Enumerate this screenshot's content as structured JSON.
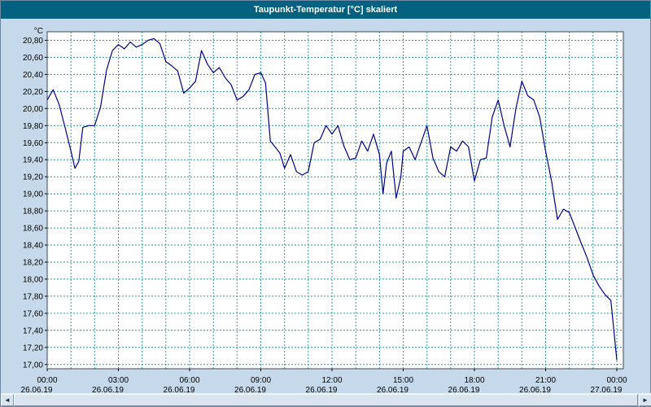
{
  "window": {
    "title": "Taupunkt-Temperatur [°C] skaliert"
  },
  "colors": {
    "titlebar_bg": "#04617f",
    "titlebar_text": "#ffffff",
    "window_bg": "#c6d9ea",
    "plot_bg": "#ffffff",
    "grid": "#2e9c96",
    "line": "#00008c",
    "plot_border": "#3c4a58",
    "axis_text": "#000000"
  },
  "scrollbar": {
    "left_arrow": "◄",
    "right_arrow": "►"
  },
  "chart_data": {
    "type": "line",
    "title": "Taupunkt-Temperatur [°C] skaliert",
    "xlabel": "",
    "ylabel": "°C",
    "ylim": [
      16.95,
      20.9
    ],
    "xlim_hours": [
      0,
      24
    ],
    "grid": "dashed teal gridlines: vertical every hour, horizontal every 0.2 °C",
    "legend_position": "none",
    "y_ticks": [
      "20,80",
      "20,60",
      "20,40",
      "20,20",
      "20,00",
      "19,80",
      "19,60",
      "19,40",
      "19,20",
      "19,00",
      "18,80",
      "18,60",
      "18,40",
      "18,20",
      "18,00",
      "17,80",
      "17,60",
      "17,40",
      "17,20",
      "17,00"
    ],
    "y_tick_values": [
      20.8,
      20.6,
      20.4,
      20.2,
      20.0,
      19.8,
      19.6,
      19.4,
      19.2,
      19.0,
      18.8,
      18.6,
      18.4,
      18.2,
      18.0,
      17.8,
      17.6,
      17.4,
      17.2,
      17.0
    ],
    "x_ticks": [
      {
        "hour": 0,
        "time": "00:00",
        "date": "26.06.19"
      },
      {
        "hour": 3,
        "time": "03:00",
        "date": "26.06.19"
      },
      {
        "hour": 6,
        "time": "06:00",
        "date": "26.06.19"
      },
      {
        "hour": 9,
        "time": "09:00",
        "date": "26.06.19"
      },
      {
        "hour": 12,
        "time": "12:00",
        "date": "26.06.19"
      },
      {
        "hour": 15,
        "time": "15:00",
        "date": "26.06.19"
      },
      {
        "hour": 18,
        "time": "18:00",
        "date": "26.06.19"
      },
      {
        "hour": 21,
        "time": "21:00",
        "date": "26.06.19"
      },
      {
        "hour": 24,
        "time": "00:00",
        "date": "27.06.19"
      }
    ],
    "series": [
      {
        "name": "Taupunkt-Temperatur",
        "color": "#00008c",
        "points": [
          [
            0,
            20.1
          ],
          [
            0.25,
            20.22
          ],
          [
            0.5,
            20.05
          ],
          [
            0.75,
            19.78
          ],
          [
            1.0,
            19.5
          ],
          [
            1.17,
            19.3
          ],
          [
            1.33,
            19.38
          ],
          [
            1.5,
            19.78
          ],
          [
            1.75,
            19.8
          ],
          [
            2.0,
            19.8
          ],
          [
            2.25,
            20.02
          ],
          [
            2.5,
            20.45
          ],
          [
            2.75,
            20.68
          ],
          [
            3.0,
            20.75
          ],
          [
            3.25,
            20.7
          ],
          [
            3.5,
            20.78
          ],
          [
            3.75,
            20.72
          ],
          [
            4.0,
            20.75
          ],
          [
            4.25,
            20.8
          ],
          [
            4.5,
            20.82
          ],
          [
            4.75,
            20.76
          ],
          [
            5.0,
            20.55
          ],
          [
            5.25,
            20.5
          ],
          [
            5.5,
            20.44
          ],
          [
            5.75,
            20.18
          ],
          [
            6.0,
            20.24
          ],
          [
            6.25,
            20.32
          ],
          [
            6.5,
            20.68
          ],
          [
            6.75,
            20.52
          ],
          [
            7.0,
            20.42
          ],
          [
            7.25,
            20.48
          ],
          [
            7.5,
            20.36
          ],
          [
            7.75,
            20.28
          ],
          [
            8.0,
            20.1
          ],
          [
            8.25,
            20.14
          ],
          [
            8.5,
            20.22
          ],
          [
            8.75,
            20.4
          ],
          [
            9.0,
            20.42
          ],
          [
            9.2,
            20.3
          ],
          [
            9.4,
            19.62
          ],
          [
            9.6,
            19.55
          ],
          [
            9.8,
            19.48
          ],
          [
            10.0,
            19.3
          ],
          [
            10.25,
            19.46
          ],
          [
            10.5,
            19.26
          ],
          [
            10.75,
            19.22
          ],
          [
            11.0,
            19.26
          ],
          [
            11.25,
            19.6
          ],
          [
            11.5,
            19.64
          ],
          [
            11.75,
            19.8
          ],
          [
            12.0,
            19.7
          ],
          [
            12.25,
            19.8
          ],
          [
            12.5,
            19.56
          ],
          [
            12.75,
            19.4
          ],
          [
            13.0,
            19.42
          ],
          [
            13.25,
            19.62
          ],
          [
            13.5,
            19.5
          ],
          [
            13.75,
            19.7
          ],
          [
            14.0,
            19.46
          ],
          [
            14.15,
            19.0
          ],
          [
            14.3,
            19.36
          ],
          [
            14.5,
            19.5
          ],
          [
            14.7,
            18.95
          ],
          [
            14.9,
            19.2
          ],
          [
            15.0,
            19.5
          ],
          [
            15.25,
            19.55
          ],
          [
            15.5,
            19.4
          ],
          [
            15.75,
            19.6
          ],
          [
            16.0,
            19.8
          ],
          [
            16.25,
            19.42
          ],
          [
            16.5,
            19.26
          ],
          [
            16.75,
            19.2
          ],
          [
            17.0,
            19.55
          ],
          [
            17.25,
            19.5
          ],
          [
            17.5,
            19.62
          ],
          [
            17.75,
            19.55
          ],
          [
            18.0,
            19.15
          ],
          [
            18.25,
            19.4
          ],
          [
            18.5,
            19.42
          ],
          [
            18.75,
            19.9
          ],
          [
            19.0,
            20.1
          ],
          [
            19.25,
            19.8
          ],
          [
            19.5,
            19.55
          ],
          [
            19.75,
            20.0
          ],
          [
            20.0,
            20.32
          ],
          [
            20.25,
            20.15
          ],
          [
            20.5,
            20.1
          ],
          [
            20.75,
            19.9
          ],
          [
            21.0,
            19.5
          ],
          [
            21.25,
            19.15
          ],
          [
            21.5,
            18.7
          ],
          [
            21.75,
            18.82
          ],
          [
            22.0,
            18.78
          ],
          [
            22.25,
            18.6
          ],
          [
            22.5,
            18.42
          ],
          [
            22.75,
            18.25
          ],
          [
            23.0,
            18.05
          ],
          [
            23.25,
            17.92
          ],
          [
            23.5,
            17.82
          ],
          [
            23.75,
            17.75
          ],
          [
            24.0,
            17.05
          ]
        ]
      }
    ]
  }
}
